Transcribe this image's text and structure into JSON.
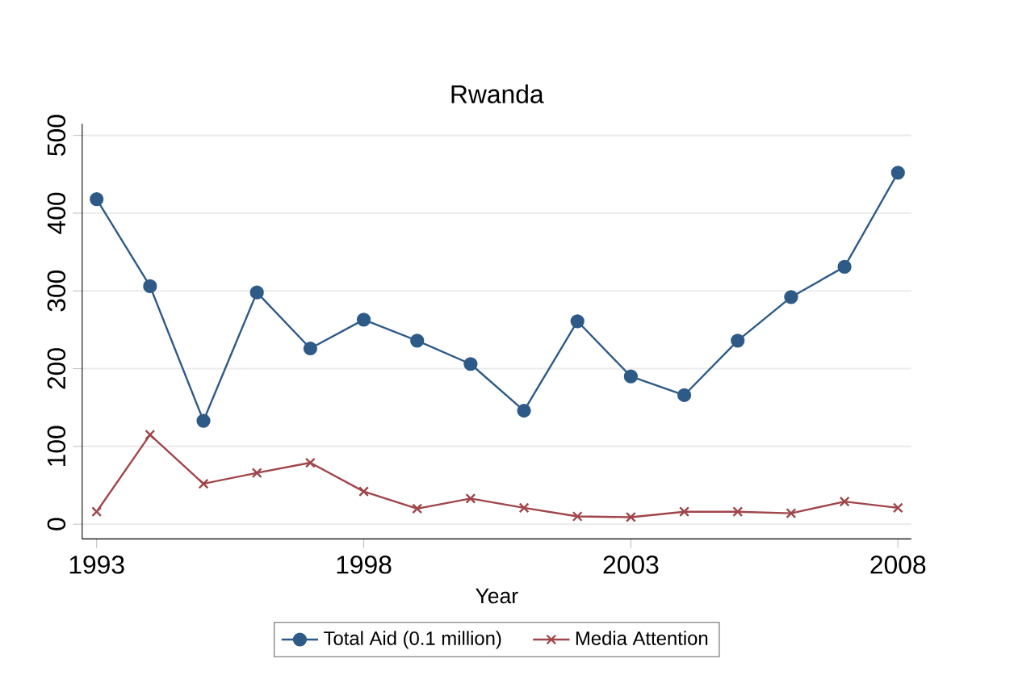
{
  "chart_data": {
    "type": "line",
    "title": "Rwanda",
    "xlabel": "Year",
    "x": [
      1993,
      1994,
      1995,
      1996,
      1997,
      1998,
      1999,
      2000,
      2001,
      2002,
      2003,
      2004,
      2005,
      2006,
      2007,
      2008
    ],
    "series": [
      {
        "name": "Total Aid (0.1 million)",
        "color": "#2e5a87",
        "marker": "circle",
        "values": [
          418,
          306,
          133,
          298,
          226,
          263,
          236,
          206,
          146,
          261,
          190,
          166,
          236,
          292,
          331,
          452
        ]
      },
      {
        "name": "Media Attention",
        "color": "#a0454a",
        "marker": "cross",
        "values": [
          16,
          115,
          52,
          66,
          79,
          42,
          20,
          33,
          21,
          10,
          9,
          16,
          16,
          14,
          29,
          21
        ]
      }
    ],
    "xlim": [
      1992.73,
      2008.25
    ],
    "ylim": [
      -19,
      515
    ],
    "xticks": [
      1993,
      1998,
      2003,
      2008
    ],
    "yticks": [
      0,
      100,
      200,
      300,
      400,
      500
    ],
    "grid": "y",
    "legend": "bottom",
    "line_style": "solid"
  }
}
